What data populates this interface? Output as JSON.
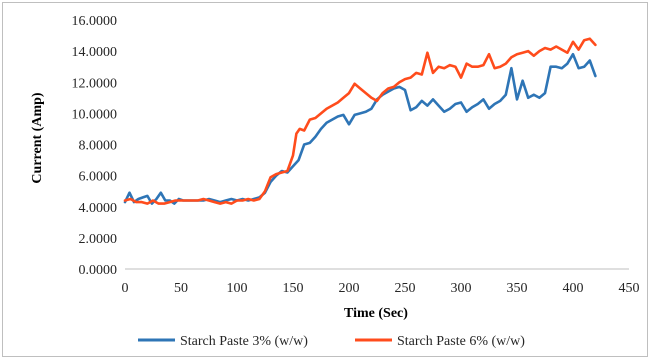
{
  "chart_data": {
    "type": "line",
    "xlabel": "Time (Sec)",
    "ylabel": "Current (Amp)",
    "xlim": [
      0,
      450
    ],
    "ylim": [
      0,
      16
    ],
    "x_ticks": [
      0,
      50,
      100,
      150,
      200,
      250,
      300,
      350,
      400,
      450
    ],
    "y_ticks": [
      "0.0000",
      "2.0000",
      "4.0000",
      "6.0000",
      "8.0000",
      "10.0000",
      "12.0000",
      "14.0000",
      "16.0000"
    ],
    "y_tick_values": [
      0,
      2,
      4,
      6,
      8,
      10,
      12,
      14,
      16
    ],
    "grid": "none",
    "legend_position": "bottom",
    "series": [
      {
        "name": "Starch Paste 3% (w/w)",
        "color": "#2e75b6",
        "points": [
          [
            0,
            4.3
          ],
          [
            4,
            4.9
          ],
          [
            8,
            4.3
          ],
          [
            12,
            4.5
          ],
          [
            16,
            4.6
          ],
          [
            20,
            4.7
          ],
          [
            24,
            4.2
          ],
          [
            28,
            4.5
          ],
          [
            32,
            4.9
          ],
          [
            36,
            4.4
          ],
          [
            40,
            4.4
          ],
          [
            44,
            4.2
          ],
          [
            48,
            4.5
          ],
          [
            52,
            4.4
          ],
          [
            56,
            4.4
          ],
          [
            60,
            4.4
          ],
          [
            65,
            4.4
          ],
          [
            70,
            4.4
          ],
          [
            75,
            4.5
          ],
          [
            80,
            4.4
          ],
          [
            85,
            4.3
          ],
          [
            90,
            4.4
          ],
          [
            95,
            4.5
          ],
          [
            100,
            4.4
          ],
          [
            105,
            4.5
          ],
          [
            110,
            4.4
          ],
          [
            115,
            4.5
          ],
          [
            120,
            4.6
          ],
          [
            125,
            4.9
          ],
          [
            130,
            5.6
          ],
          [
            135,
            6.0
          ],
          [
            140,
            6.3
          ],
          [
            145,
            6.2
          ],
          [
            150,
            6.6
          ],
          [
            155,
            7.0
          ],
          [
            160,
            8.0
          ],
          [
            165,
            8.1
          ],
          [
            170,
            8.5
          ],
          [
            175,
            9.0
          ],
          [
            180,
            9.4
          ],
          [
            185,
            9.6
          ],
          [
            190,
            9.8
          ],
          [
            195,
            9.9
          ],
          [
            200,
            9.3
          ],
          [
            205,
            9.9
          ],
          [
            210,
            10.0
          ],
          [
            215,
            10.1
          ],
          [
            220,
            10.3
          ],
          [
            225,
            10.9
          ],
          [
            230,
            11.2
          ],
          [
            235,
            11.4
          ],
          [
            240,
            11.6
          ],
          [
            245,
            11.7
          ],
          [
            250,
            11.5
          ],
          [
            255,
            10.2
          ],
          [
            260,
            10.4
          ],
          [
            265,
            10.8
          ],
          [
            270,
            10.5
          ],
          [
            275,
            10.9
          ],
          [
            280,
            10.5
          ],
          [
            285,
            10.1
          ],
          [
            290,
            10.3
          ],
          [
            295,
            10.6
          ],
          [
            300,
            10.7
          ],
          [
            305,
            10.1
          ],
          [
            310,
            10.4
          ],
          [
            315,
            10.6
          ],
          [
            320,
            10.9
          ],
          [
            325,
            10.3
          ],
          [
            330,
            10.6
          ],
          [
            335,
            10.8
          ],
          [
            340,
            11.2
          ],
          [
            345,
            12.9
          ],
          [
            350,
            10.9
          ],
          [
            355,
            12.1
          ],
          [
            360,
            11.0
          ],
          [
            365,
            11.2
          ],
          [
            370,
            11.0
          ],
          [
            375,
            11.3
          ],
          [
            380,
            13.0
          ],
          [
            385,
            13.0
          ],
          [
            390,
            12.9
          ],
          [
            395,
            13.2
          ],
          [
            400,
            13.8
          ],
          [
            405,
            12.9
          ],
          [
            410,
            13.0
          ],
          [
            415,
            13.4
          ],
          [
            420,
            12.4
          ]
        ]
      },
      {
        "name": "Starch Paste 6% (w/w)",
        "color": "#ff4c1c",
        "points": [
          [
            0,
            4.4
          ],
          [
            5,
            4.5
          ],
          [
            10,
            4.3
          ],
          [
            15,
            4.3
          ],
          [
            20,
            4.2
          ],
          [
            25,
            4.4
          ],
          [
            30,
            4.2
          ],
          [
            35,
            4.2
          ],
          [
            40,
            4.3
          ],
          [
            45,
            4.4
          ],
          [
            50,
            4.4
          ],
          [
            55,
            4.4
          ],
          [
            60,
            4.4
          ],
          [
            65,
            4.4
          ],
          [
            70,
            4.5
          ],
          [
            75,
            4.4
          ],
          [
            80,
            4.3
          ],
          [
            85,
            4.2
          ],
          [
            90,
            4.3
          ],
          [
            95,
            4.2
          ],
          [
            100,
            4.4
          ],
          [
            105,
            4.4
          ],
          [
            110,
            4.5
          ],
          [
            115,
            4.4
          ],
          [
            120,
            4.5
          ],
          [
            125,
            5.0
          ],
          [
            130,
            5.9
          ],
          [
            135,
            6.1
          ],
          [
            140,
            6.2
          ],
          [
            145,
            6.3
          ],
          [
            150,
            7.3
          ],
          [
            153,
            8.7
          ],
          [
            156,
            9.0
          ],
          [
            160,
            8.9
          ],
          [
            165,
            9.6
          ],
          [
            170,
            9.7
          ],
          [
            175,
            10.0
          ],
          [
            180,
            10.3
          ],
          [
            185,
            10.5
          ],
          [
            190,
            10.7
          ],
          [
            195,
            11.0
          ],
          [
            200,
            11.3
          ],
          [
            205,
            11.9
          ],
          [
            210,
            11.6
          ],
          [
            215,
            11.3
          ],
          [
            220,
            11.0
          ],
          [
            225,
            10.8
          ],
          [
            230,
            11.3
          ],
          [
            235,
            11.6
          ],
          [
            240,
            11.7
          ],
          [
            245,
            12.0
          ],
          [
            250,
            12.2
          ],
          [
            255,
            12.3
          ],
          [
            260,
            12.6
          ],
          [
            265,
            12.5
          ],
          [
            270,
            13.9
          ],
          [
            275,
            12.6
          ],
          [
            280,
            13.0
          ],
          [
            285,
            12.9
          ],
          [
            290,
            13.1
          ],
          [
            295,
            13.0
          ],
          [
            300,
            12.3
          ],
          [
            305,
            13.2
          ],
          [
            310,
            13.0
          ],
          [
            315,
            13.0
          ],
          [
            320,
            13.1
          ],
          [
            325,
            13.8
          ],
          [
            330,
            12.9
          ],
          [
            335,
            13.0
          ],
          [
            340,
            13.2
          ],
          [
            345,
            13.6
          ],
          [
            350,
            13.8
          ],
          [
            355,
            13.9
          ],
          [
            360,
            14.0
          ],
          [
            365,
            13.7
          ],
          [
            370,
            14.0
          ],
          [
            375,
            14.2
          ],
          [
            380,
            14.1
          ],
          [
            385,
            14.3
          ],
          [
            390,
            14.1
          ],
          [
            395,
            13.9
          ],
          [
            400,
            14.6
          ],
          [
            405,
            14.1
          ],
          [
            410,
            14.7
          ],
          [
            415,
            14.8
          ],
          [
            420,
            14.4
          ]
        ]
      }
    ]
  }
}
